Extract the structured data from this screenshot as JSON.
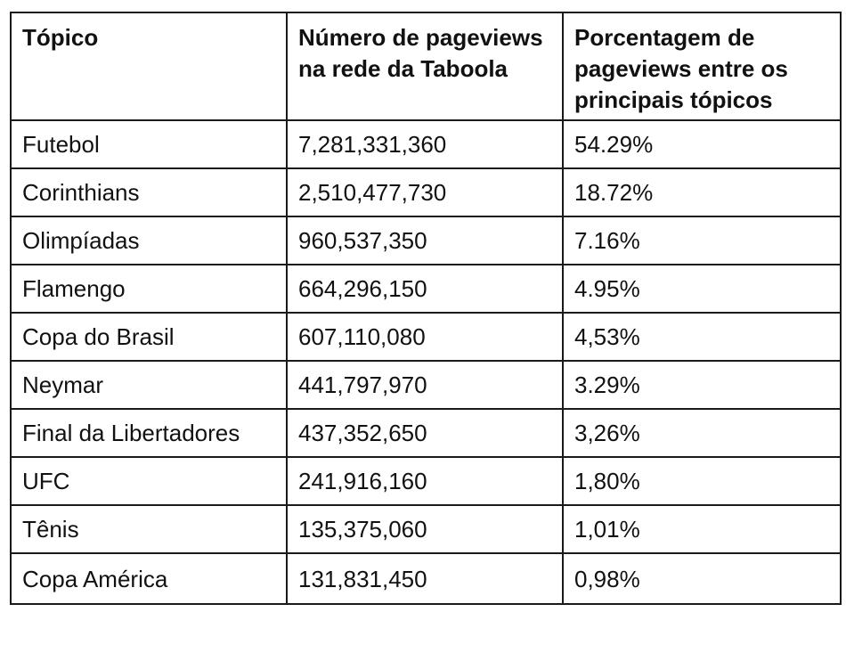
{
  "table": {
    "headers": [
      "Tópico",
      "Número de pageviews na rede da Taboola",
      "Porcentagem de pageviews entre os principais tópicos"
    ],
    "rows": [
      [
        "Futebol",
        "7,281,331,360",
        "54.29%"
      ],
      [
        "Corinthians",
        "2,510,477,730",
        "18.72%"
      ],
      [
        "Olimpíadas",
        "960,537,350",
        "7.16%"
      ],
      [
        "Flamengo",
        "664,296,150",
        "4.95%"
      ],
      [
        "Copa do Brasil",
        "607,110,080",
        "4,53%"
      ],
      [
        "Neymar",
        "441,797,970",
        "3.29%"
      ],
      [
        "Final da Libertadores",
        "437,352,650",
        "3,26%"
      ],
      [
        "UFC",
        "241,916,160",
        "1,80%"
      ],
      [
        "Tênis",
        "135,375,060",
        "1,01%"
      ],
      [
        "Copa América",
        "131,831,450",
        "0,98%"
      ]
    ]
  }
}
